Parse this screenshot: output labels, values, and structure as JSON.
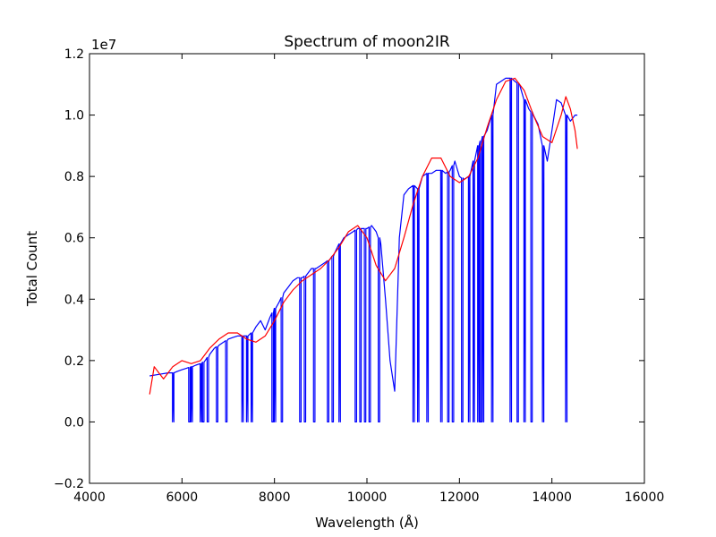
{
  "chart_data": {
    "type": "line",
    "title": "Spectrum of moon2IR",
    "xlabel": "Wavelength (Å)",
    "ylabel": "Total Count",
    "y_multiplier_label": "1e7",
    "xlim": [
      4000,
      16000
    ],
    "ylim": [
      -0.2,
      1.2
    ],
    "y_unit_scale": 10000000,
    "x_ticks": [
      4000,
      6000,
      8000,
      10000,
      12000,
      14000,
      16000
    ],
    "x_tick_labels": [
      "4000",
      "6000",
      "8000",
      "10000",
      "12000",
      "14000",
      "16000"
    ],
    "y_ticks": [
      -0.2,
      0.0,
      0.2,
      0.4,
      0.6,
      0.8,
      1.0,
      1.2
    ],
    "y_tick_labels": [
      "−0.2",
      "0.0",
      "0.2",
      "0.4",
      "0.6",
      "0.8",
      "1.0",
      "1.2"
    ],
    "grid": false,
    "legend": "none",
    "series": [
      {
        "color": "#0000ff",
        "style": "spectrum",
        "x": [
          5300,
          5500,
          5700,
          5800,
          5900,
          6000,
          6100,
          6200,
          6300,
          6400,
          6500,
          6600,
          6700,
          6800,
          6900,
          7000,
          7100,
          7200,
          7300,
          7400,
          7500,
          7600,
          7700,
          7800,
          7900,
          8000,
          8100,
          8200,
          8300,
          8400,
          8500,
          8600,
          8700,
          8800,
          8900,
          9000,
          9100,
          9200,
          9300,
          9400,
          9500,
          9600,
          9700,
          9800,
          9900,
          10000,
          10100,
          10200,
          10300,
          10400,
          10500,
          10600,
          10700,
          10800,
          10900,
          11000,
          11100,
          11200,
          11300,
          11400,
          11500,
          11600,
          11700,
          11800,
          11900,
          12000,
          12100,
          12200,
          12300,
          12400,
          12500,
          12600,
          12700,
          12800,
          12900,
          13000,
          13100,
          13200,
          13300,
          13400,
          13500,
          13600,
          13700,
          13800,
          13900,
          14000,
          14100,
          14200,
          14300,
          14400,
          14500,
          14550
        ],
        "y": [
          0.15,
          0.155,
          0.16,
          0.16,
          0.165,
          0.17,
          0.175,
          0.18,
          0.185,
          0.19,
          0.2,
          0.22,
          0.24,
          0.25,
          0.26,
          0.27,
          0.275,
          0.28,
          0.28,
          0.28,
          0.29,
          0.31,
          0.33,
          0.3,
          0.34,
          0.37,
          0.39,
          0.42,
          0.44,
          0.46,
          0.47,
          0.47,
          0.48,
          0.5,
          0.5,
          0.51,
          0.52,
          0.53,
          0.55,
          0.58,
          0.6,
          0.61,
          0.62,
          0.63,
          0.63,
          0.63,
          0.64,
          0.62,
          0.58,
          0.4,
          0.2,
          0.1,
          0.6,
          0.74,
          0.76,
          0.77,
          0.76,
          0.8,
          0.81,
          0.81,
          0.82,
          0.82,
          0.81,
          0.82,
          0.85,
          0.8,
          0.79,
          0.8,
          0.85,
          0.9,
          0.93,
          0.95,
          1.0,
          1.1,
          1.11,
          1.12,
          1.12,
          1.11,
          1.1,
          1.05,
          1.02,
          1.0,
          0.97,
          0.9,
          0.85,
          0.95,
          1.05,
          1.04,
          1.0,
          0.98,
          1.0,
          1.0
        ],
        "drops_to_zero_x": [
          5800,
          6150,
          6200,
          6400,
          6450,
          6550,
          6750,
          6950,
          7300,
          7400,
          7500,
          7950,
          8000,
          8150,
          8550,
          8650,
          8850,
          9150,
          9250,
          9400,
          9750,
          9850,
          9950,
          10050,
          10250,
          11000,
          11100,
          11300,
          11600,
          11750,
          11850,
          12050,
          12200,
          12300,
          12400,
          12450,
          12500,
          12700,
          13100,
          13250,
          13400,
          13550,
          13800,
          14300
        ]
      },
      {
        "color": "#ff0000",
        "style": "fit",
        "x": [
          5300,
          5400,
          5500,
          5600,
          5700,
          5800,
          6000,
          6200,
          6400,
          6600,
          6800,
          7000,
          7200,
          7400,
          7600,
          7800,
          8000,
          8200,
          8400,
          8600,
          8800,
          9000,
          9200,
          9400,
          9600,
          9800,
          10000,
          10200,
          10400,
          10600,
          10800,
          11000,
          11200,
          11400,
          11600,
          11800,
          12000,
          12200,
          12400,
          12600,
          12800,
          13000,
          13200,
          13400,
          13600,
          13800,
          14000,
          14200,
          14300,
          14400,
          14500,
          14550
        ],
        "y": [
          0.09,
          0.18,
          0.16,
          0.14,
          0.16,
          0.18,
          0.2,
          0.19,
          0.2,
          0.24,
          0.27,
          0.29,
          0.29,
          0.27,
          0.26,
          0.28,
          0.33,
          0.39,
          0.43,
          0.46,
          0.48,
          0.5,
          0.53,
          0.57,
          0.62,
          0.64,
          0.6,
          0.51,
          0.46,
          0.5,
          0.6,
          0.71,
          0.8,
          0.86,
          0.86,
          0.8,
          0.78,
          0.8,
          0.86,
          0.96,
          1.05,
          1.11,
          1.12,
          1.08,
          1.0,
          0.93,
          0.91,
          1.0,
          1.06,
          1.02,
          0.95,
          0.89
        ]
      }
    ]
  }
}
